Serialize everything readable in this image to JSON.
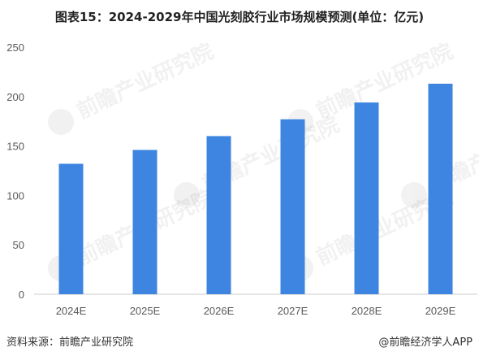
{
  "chart_data": {
    "type": "bar",
    "title": "图表15：2024-2029年中国光刻胶行业市场规模预测(单位：亿元)",
    "categories": [
      "2024E",
      "2025E",
      "2026E",
      "2027E",
      "2028E",
      "2029E"
    ],
    "values": [
      132,
      146,
      160,
      177,
      194,
      213
    ],
    "ylim": [
      0,
      250
    ],
    "yticks": [
      0,
      50,
      100,
      150,
      200,
      250
    ],
    "xlabel": "",
    "ylabel": "",
    "grid": false,
    "legend": "none",
    "bar_color": "#3d85e0"
  },
  "footer": {
    "source": "资料来源：前瞻产业研究院",
    "brand": "@前瞻经济学人APP"
  },
  "watermark": {
    "text": "前瞻产业研究院"
  }
}
